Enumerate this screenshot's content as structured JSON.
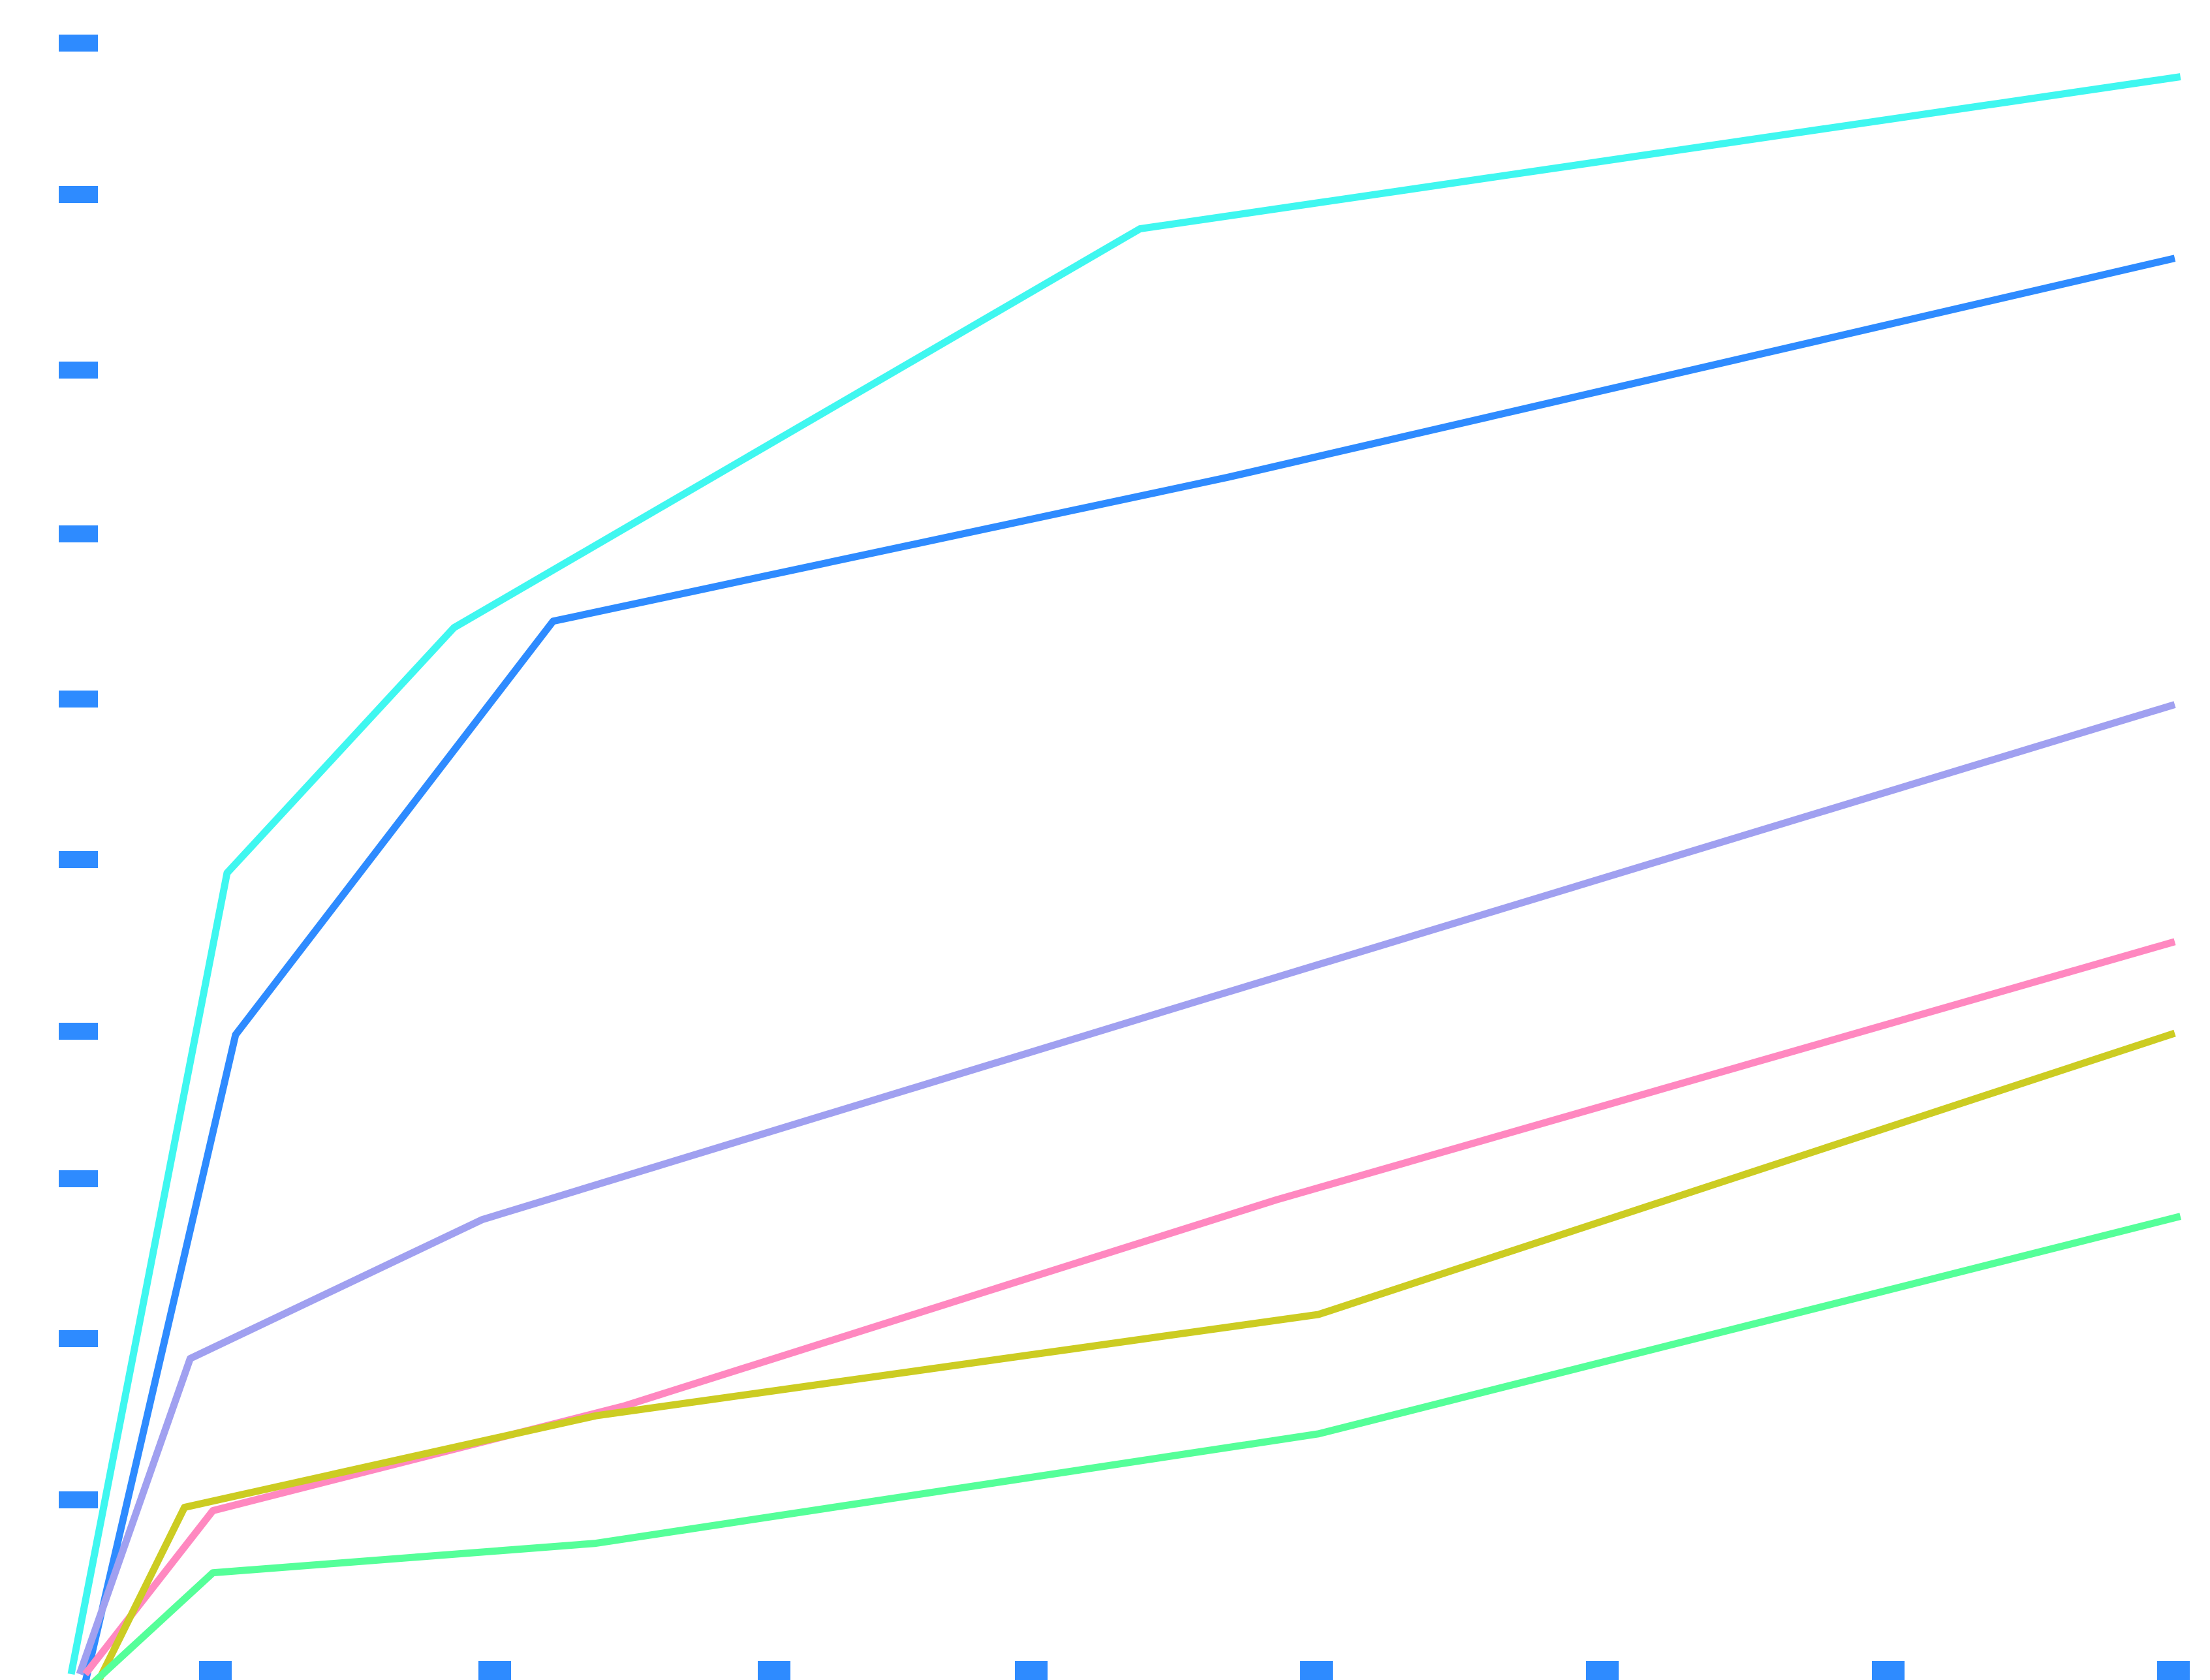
{
  "chart_data": {
    "type": "line",
    "title": "",
    "xlabel": "",
    "ylabel": "",
    "grid": false,
    "legend": "none",
    "tick_color": "#2e8bff",
    "x_ticks": [
      1,
      2,
      3,
      4,
      5,
      6,
      7,
      8
    ],
    "y_ticks": [
      1,
      2,
      3,
      4,
      5,
      6,
      7,
      8,
      9,
      10
    ],
    "xlim": [
      0.55,
      8.0
    ],
    "ylim": [
      0.1,
      10.08
    ],
    "series": [
      {
        "color": "#3ff7f0",
        "points": [
          [
            0.55,
            0.1
          ],
          [
            1.1,
            5.0
          ],
          [
            1.9,
            6.5
          ],
          [
            4.32,
            8.94
          ],
          [
            7.99,
            9.87
          ]
        ]
      },
      {
        "color": "#2e8bff",
        "points": [
          [
            0.6,
            0.05
          ],
          [
            1.13,
            4.01
          ],
          [
            2.25,
            6.54
          ],
          [
            4.63,
            7.42
          ],
          [
            7.97,
            8.76
          ]
        ]
      },
      {
        "color": "#a0a0f0",
        "points": [
          [
            0.58,
            0.1
          ],
          [
            0.97,
            2.03
          ],
          [
            2.0,
            2.88
          ],
          [
            4.57,
            4.24
          ],
          [
            7.97,
            6.03
          ]
        ]
      },
      {
        "color": "#ff88c0",
        "points": [
          [
            0.6,
            0.1
          ],
          [
            1.05,
            1.1
          ],
          [
            2.5,
            1.74
          ],
          [
            4.8,
            3.0
          ],
          [
            7.97,
            4.58
          ]
        ]
      },
      {
        "color": "#cccc22",
        "points": [
          [
            0.63,
            0.0
          ],
          [
            0.95,
            1.12
          ],
          [
            2.4,
            1.68
          ],
          [
            4.95,
            2.3
          ],
          [
            7.97,
            4.02
          ]
        ]
      },
      {
        "color": "#55ff99",
        "points": [
          [
            0.63,
            0.05
          ],
          [
            1.05,
            0.72
          ],
          [
            2.4,
            0.9
          ],
          [
            4.95,
            1.57
          ],
          [
            7.99,
            2.9
          ]
        ]
      }
    ]
  }
}
